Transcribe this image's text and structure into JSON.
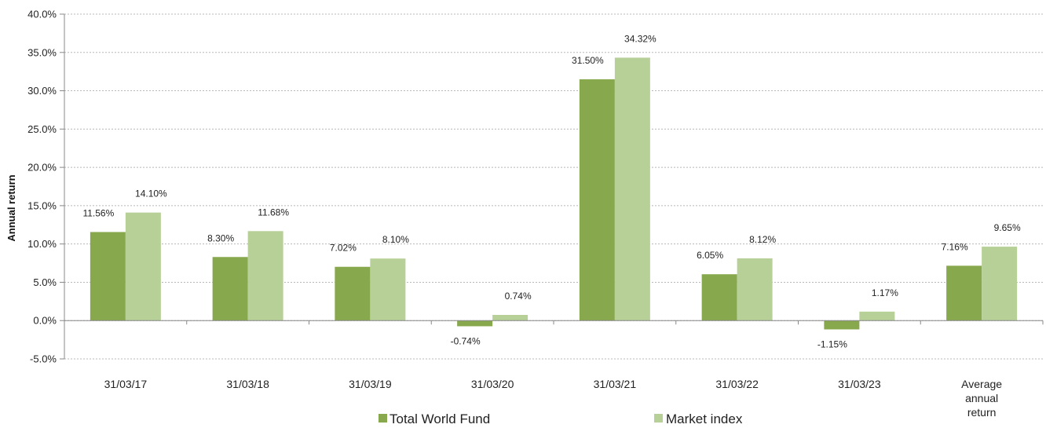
{
  "chart_data": {
    "type": "bar",
    "title": "",
    "xlabel": "",
    "ylabel": "Annual return",
    "ylim": [
      -5,
      40
    ],
    "y_ticks": [
      "-5.0%",
      "0.0%",
      "5.0%",
      "10.0%",
      "15.0%",
      "20.0%",
      "25.0%",
      "30.0%",
      "35.0%",
      "40.0%"
    ],
    "grid": true,
    "legend_position": "bottom",
    "categories": [
      [
        "31/03/17"
      ],
      [
        "31/03/18"
      ],
      [
        "31/03/19"
      ],
      [
        "31/03/20"
      ],
      [
        "31/03/21"
      ],
      [
        "31/03/22"
      ],
      [
        "31/03/23"
      ],
      [
        "Average",
        "annual",
        "return"
      ]
    ],
    "series": [
      {
        "name": "Total World Fund",
        "color": "#88a84e",
        "values": [
          11.56,
          8.3,
          7.02,
          -0.74,
          31.5,
          6.05,
          -1.15,
          7.16
        ],
        "labels": [
          "11.56%",
          "8.30%",
          "7.02%",
          "-0.74%",
          "31.50%",
          "6.05%",
          "-1.15%",
          "7.16%"
        ]
      },
      {
        "name": "Market index",
        "color": "#b7d097",
        "values": [
          14.1,
          11.68,
          8.1,
          0.74,
          34.32,
          8.12,
          1.17,
          9.65
        ],
        "labels": [
          "14.10%",
          "11.68%",
          "8.10%",
          "0.74%",
          "34.32%",
          "8.12%",
          "1.17%",
          "9.65%"
        ]
      }
    ]
  }
}
